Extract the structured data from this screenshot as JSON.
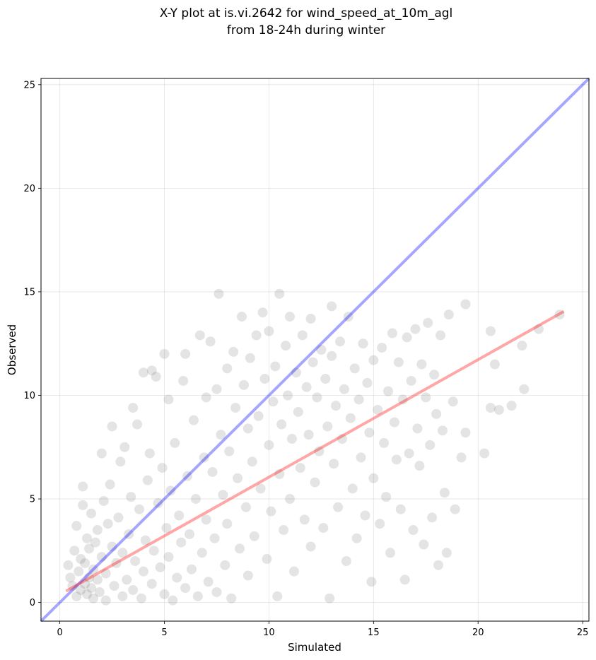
{
  "chart_data": {
    "type": "scatter",
    "title": "X-Y plot at is.vi.2642 for wind_speed_at_10m_agl",
    "subtitle": "from 18-24h during winter",
    "xlabel": "Simulated",
    "ylabel": "Observed",
    "xlim": [
      -0.9,
      25.3
    ],
    "ylim": [
      -0.9,
      25.3
    ],
    "xticks": [
      0,
      5,
      10,
      15,
      20,
      25
    ],
    "yticks": [
      0,
      5,
      10,
      15,
      20,
      25
    ],
    "xtick_labels": [
      "0",
      "5",
      "10",
      "15",
      "20",
      "25"
    ],
    "ytick_labels": [
      "0",
      "5",
      "10",
      "15",
      "20",
      "25"
    ],
    "grid": true,
    "point_color": "#555555",
    "reference_line": {
      "name": "1:1 line",
      "color": "#0000ff",
      "opacity": 0.35,
      "x": [
        -0.9,
        25.3
      ],
      "y": [
        -0.9,
        25.3
      ]
    },
    "fit_line": {
      "name": "regression",
      "color": "#ff0000",
      "opacity": 0.35,
      "x": [
        0.3,
        24.1
      ],
      "y": [
        0.55,
        14.05
      ]
    },
    "points": [
      [
        0.4,
        1.8
      ],
      [
        0.5,
        1.2
      ],
      [
        0.6,
        0.8
      ],
      [
        0.7,
        2.5
      ],
      [
        0.8,
        0.3
      ],
      [
        0.8,
        3.7
      ],
      [
        0.9,
        1.5
      ],
      [
        1.0,
        0.6
      ],
      [
        1.0,
        2.1
      ],
      [
        1.1,
        4.7
      ],
      [
        1.1,
        5.6
      ],
      [
        1.2,
        0.9
      ],
      [
        1.2,
        1.9
      ],
      [
        1.3,
        0.4
      ],
      [
        1.3,
        3.1
      ],
      [
        1.4,
        1.2
      ],
      [
        1.4,
        2.6
      ],
      [
        1.5,
        0.7
      ],
      [
        1.5,
        4.3
      ],
      [
        1.6,
        1.6
      ],
      [
        1.6,
        0.2
      ],
      [
        1.7,
        2.9
      ],
      [
        1.8,
        1.1
      ],
      [
        1.8,
        3.5
      ],
      [
        1.9,
        0.5
      ],
      [
        2.0,
        2.2
      ],
      [
        2.0,
        7.2
      ],
      [
        2.1,
        4.9
      ],
      [
        2.2,
        1.4
      ],
      [
        2.2,
        0.1
      ],
      [
        2.3,
        3.8
      ],
      [
        2.4,
        5.7
      ],
      [
        2.5,
        2.7
      ],
      [
        2.5,
        8.5
      ],
      [
        2.6,
        0.8
      ],
      [
        2.7,
        1.9
      ],
      [
        2.8,
        4.1
      ],
      [
        2.9,
        6.8
      ],
      [
        3.0,
        0.3
      ],
      [
        3.0,
        2.4
      ],
      [
        3.1,
        7.5
      ],
      [
        3.2,
        1.1
      ],
      [
        3.3,
        3.3
      ],
      [
        3.4,
        5.1
      ],
      [
        3.5,
        0.6
      ],
      [
        3.5,
        9.4
      ],
      [
        3.6,
        2.0
      ],
      [
        3.7,
        8.6
      ],
      [
        3.8,
        4.5
      ],
      [
        3.9,
        0.2
      ],
      [
        4.0,
        1.5
      ],
      [
        4.0,
        11.1
      ],
      [
        4.1,
        3.0
      ],
      [
        4.2,
        5.9
      ],
      [
        4.3,
        7.2
      ],
      [
        4.4,
        0.9
      ],
      [
        4.4,
        11.2
      ],
      [
        4.5,
        2.5
      ],
      [
        4.6,
        10.9
      ],
      [
        4.7,
        4.8
      ],
      [
        4.8,
        1.7
      ],
      [
        4.9,
        6.5
      ],
      [
        5.0,
        0.4
      ],
      [
        5.0,
        12.0
      ],
      [
        5.1,
        3.6
      ],
      [
        5.2,
        2.2
      ],
      [
        5.2,
        9.8
      ],
      [
        5.3,
        5.4
      ],
      [
        5.4,
        0.1
      ],
      [
        5.5,
        7.7
      ],
      [
        5.6,
        1.2
      ],
      [
        5.7,
        4.2
      ],
      [
        5.8,
        2.9
      ],
      [
        5.9,
        10.7
      ],
      [
        6.0,
        0.7
      ],
      [
        6.0,
        12.0
      ],
      [
        6.1,
        6.1
      ],
      [
        6.2,
        3.3
      ],
      [
        6.3,
        1.6
      ],
      [
        6.4,
        8.8
      ],
      [
        6.5,
        5.0
      ],
      [
        6.6,
        0.3
      ],
      [
        6.7,
        12.9
      ],
      [
        6.8,
        2.4
      ],
      [
        6.9,
        7.0
      ],
      [
        7.0,
        4.0
      ],
      [
        7.0,
        9.9
      ],
      [
        7.1,
        1.0
      ],
      [
        7.2,
        12.6
      ],
      [
        7.3,
        6.3
      ],
      [
        7.4,
        3.1
      ],
      [
        7.5,
        10.3
      ],
      [
        7.5,
        0.5
      ],
      [
        7.6,
        14.9
      ],
      [
        7.7,
        8.1
      ],
      [
        7.8,
        5.2
      ],
      [
        7.9,
        1.8
      ],
      [
        8.0,
        11.3
      ],
      [
        8.0,
        3.8
      ],
      [
        8.1,
        7.3
      ],
      [
        8.2,
        0.2
      ],
      [
        8.3,
        12.1
      ],
      [
        8.4,
        9.4
      ],
      [
        8.5,
        6.0
      ],
      [
        8.6,
        2.6
      ],
      [
        8.7,
        13.8
      ],
      [
        8.8,
        10.5
      ],
      [
        8.9,
        4.6
      ],
      [
        9.0,
        1.3
      ],
      [
        9.0,
        8.4
      ],
      [
        9.1,
        11.8
      ],
      [
        9.2,
        6.8
      ],
      [
        9.3,
        3.2
      ],
      [
        9.4,
        12.9
      ],
      [
        9.5,
        9.0
      ],
      [
        9.6,
        5.5
      ],
      [
        9.7,
        14.0
      ],
      [
        9.8,
        10.8
      ],
      [
        9.9,
        2.1
      ],
      [
        10.0,
        7.6
      ],
      [
        10.0,
        13.1
      ],
      [
        10.1,
        4.4
      ],
      [
        10.2,
        9.7
      ],
      [
        10.3,
        11.4
      ],
      [
        10.4,
        0.3
      ],
      [
        10.5,
        6.2
      ],
      [
        10.5,
        14.9
      ],
      [
        10.6,
        8.6
      ],
      [
        10.7,
        3.5
      ],
      [
        10.8,
        12.4
      ],
      [
        10.9,
        10.0
      ],
      [
        11.0,
        5.0
      ],
      [
        11.0,
        13.8
      ],
      [
        11.1,
        7.9
      ],
      [
        11.2,
        1.5
      ],
      [
        11.3,
        11.1
      ],
      [
        11.4,
        9.2
      ],
      [
        11.5,
        6.5
      ],
      [
        11.6,
        12.9
      ],
      [
        11.7,
        4.0
      ],
      [
        11.8,
        10.4
      ],
      [
        11.9,
        8.1
      ],
      [
        12.0,
        13.7
      ],
      [
        12.0,
        2.7
      ],
      [
        12.1,
        11.6
      ],
      [
        12.2,
        5.8
      ],
      [
        12.3,
        9.9
      ],
      [
        12.4,
        7.3
      ],
      [
        12.5,
        12.2
      ],
      [
        12.6,
        3.6
      ],
      [
        12.7,
        10.8
      ],
      [
        12.8,
        8.5
      ],
      [
        12.9,
        0.2
      ],
      [
        13.0,
        11.9
      ],
      [
        13.0,
        14.3
      ],
      [
        13.1,
        6.7
      ],
      [
        13.2,
        9.5
      ],
      [
        13.3,
        4.6
      ],
      [
        13.4,
        12.6
      ],
      [
        13.5,
        7.9
      ],
      [
        13.6,
        10.3
      ],
      [
        13.7,
        2.0
      ],
      [
        13.8,
        13.8
      ],
      [
        13.9,
        8.9
      ],
      [
        14.0,
        5.5
      ],
      [
        14.1,
        11.3
      ],
      [
        14.2,
        3.1
      ],
      [
        14.3,
        9.8
      ],
      [
        14.4,
        7.0
      ],
      [
        14.5,
        12.5
      ],
      [
        14.6,
        4.2
      ],
      [
        14.7,
        10.6
      ],
      [
        14.8,
        8.2
      ],
      [
        14.9,
        1.0
      ],
      [
        15.0,
        11.7
      ],
      [
        15.0,
        6.0
      ],
      [
        15.2,
        9.3
      ],
      [
        15.3,
        3.8
      ],
      [
        15.4,
        12.3
      ],
      [
        15.5,
        7.7
      ],
      [
        15.6,
        5.1
      ],
      [
        15.7,
        10.2
      ],
      [
        15.8,
        2.4
      ],
      [
        15.9,
        13.0
      ],
      [
        16.0,
        8.7
      ],
      [
        16.1,
        6.9
      ],
      [
        16.2,
        11.6
      ],
      [
        16.3,
        4.5
      ],
      [
        16.4,
        9.8
      ],
      [
        16.5,
        1.1
      ],
      [
        16.6,
        12.8
      ],
      [
        16.7,
        7.2
      ],
      [
        16.8,
        10.7
      ],
      [
        16.9,
        3.5
      ],
      [
        17.0,
        13.2
      ],
      [
        17.1,
        8.4
      ],
      [
        17.2,
        6.6
      ],
      [
        17.3,
        11.5
      ],
      [
        17.4,
        2.8
      ],
      [
        17.5,
        9.9
      ],
      [
        17.6,
        13.5
      ],
      [
        17.7,
        7.6
      ],
      [
        17.8,
        4.1
      ],
      [
        17.9,
        11.0
      ],
      [
        18.0,
        9.1
      ],
      [
        18.1,
        1.8
      ],
      [
        18.2,
        12.9
      ],
      [
        18.3,
        8.3
      ],
      [
        18.4,
        5.3
      ],
      [
        18.5,
        2.4
      ],
      [
        18.6,
        13.9
      ],
      [
        18.8,
        9.7
      ],
      [
        18.9,
        4.5
      ],
      [
        19.2,
        7.0
      ],
      [
        19.4,
        14.4
      ],
      [
        19.4,
        8.2
      ],
      [
        20.3,
        7.2
      ],
      [
        20.6,
        9.4
      ],
      [
        20.6,
        13.1
      ],
      [
        20.8,
        11.5
      ],
      [
        21.0,
        9.3
      ],
      [
        21.6,
        9.5
      ],
      [
        22.1,
        12.4
      ],
      [
        22.2,
        10.3
      ],
      [
        22.9,
        13.2
      ],
      [
        23.9,
        13.9
      ]
    ]
  }
}
